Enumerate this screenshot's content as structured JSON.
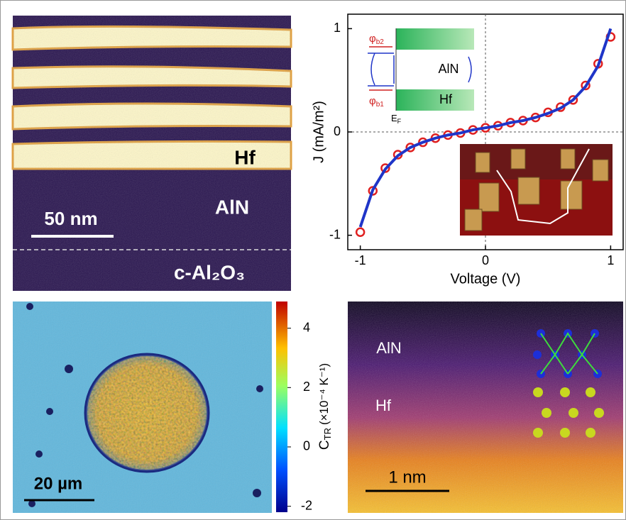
{
  "panel_a": {
    "hf": "Hf",
    "aln": "AlN",
    "scale_bar": "50 nm",
    "substrate": "c-Al₂O₃"
  },
  "chart_data": {
    "type": "line",
    "xlabel": "Voltage (V)",
    "ylabel": "J (mA/m²)",
    "xlim": [
      -1.1,
      1.1
    ],
    "ylim": [
      -1.14,
      1.14
    ],
    "xticks": [
      -1,
      0,
      1
    ],
    "yticks": [
      -1,
      0,
      1
    ],
    "x": [
      -1.0,
      -0.9,
      -0.8,
      -0.7,
      -0.6,
      -0.5,
      -0.4,
      -0.3,
      -0.2,
      -0.1,
      0.0,
      0.1,
      0.2,
      0.3,
      0.4,
      0.5,
      0.6,
      0.7,
      0.8,
      0.9,
      1.0
    ],
    "series": [
      {
        "color": "#e02020",
        "mode": "markers",
        "values": [
          -0.97,
          -0.57,
          -0.35,
          -0.22,
          -0.15,
          -0.1,
          -0.06,
          -0.03,
          -0.01,
          0.02,
          0.04,
          0.06,
          0.09,
          0.11,
          0.14,
          0.19,
          0.24,
          0.31,
          0.45,
          0.66,
          0.92
        ]
      },
      {
        "color": "#1f35c8",
        "mode": "line",
        "values": [
          -0.92,
          -0.56,
          -0.36,
          -0.23,
          -0.15,
          -0.1,
          -0.06,
          -0.03,
          -0.01,
          0.02,
          0.04,
          0.06,
          0.09,
          0.11,
          0.14,
          0.18,
          0.23,
          0.31,
          0.44,
          0.64,
          1.0
        ]
      }
    ]
  },
  "panel_b_inset": {
    "phi_b2": {
      "symbol": "φ",
      "sub": "b2"
    },
    "phi_b1": {
      "symbol": "φ",
      "sub": "b1"
    },
    "aln": "AlN",
    "hf": "Hf",
    "ef": {
      "symbol": "E",
      "sub": "F"
    }
  },
  "panel_c": {
    "scale_bar": "20 µm",
    "colorbar": {
      "label": {
        "main": "C",
        "sub": "TR",
        "unit": "(×10⁻⁴ K⁻¹)"
      },
      "ticks": [
        -2,
        0,
        2,
        4
      ],
      "lim": [
        -2.2,
        4.9
      ]
    }
  },
  "panel_d": {
    "aln": "AlN",
    "hf": "Hf",
    "scale_bar": "1 nm"
  }
}
